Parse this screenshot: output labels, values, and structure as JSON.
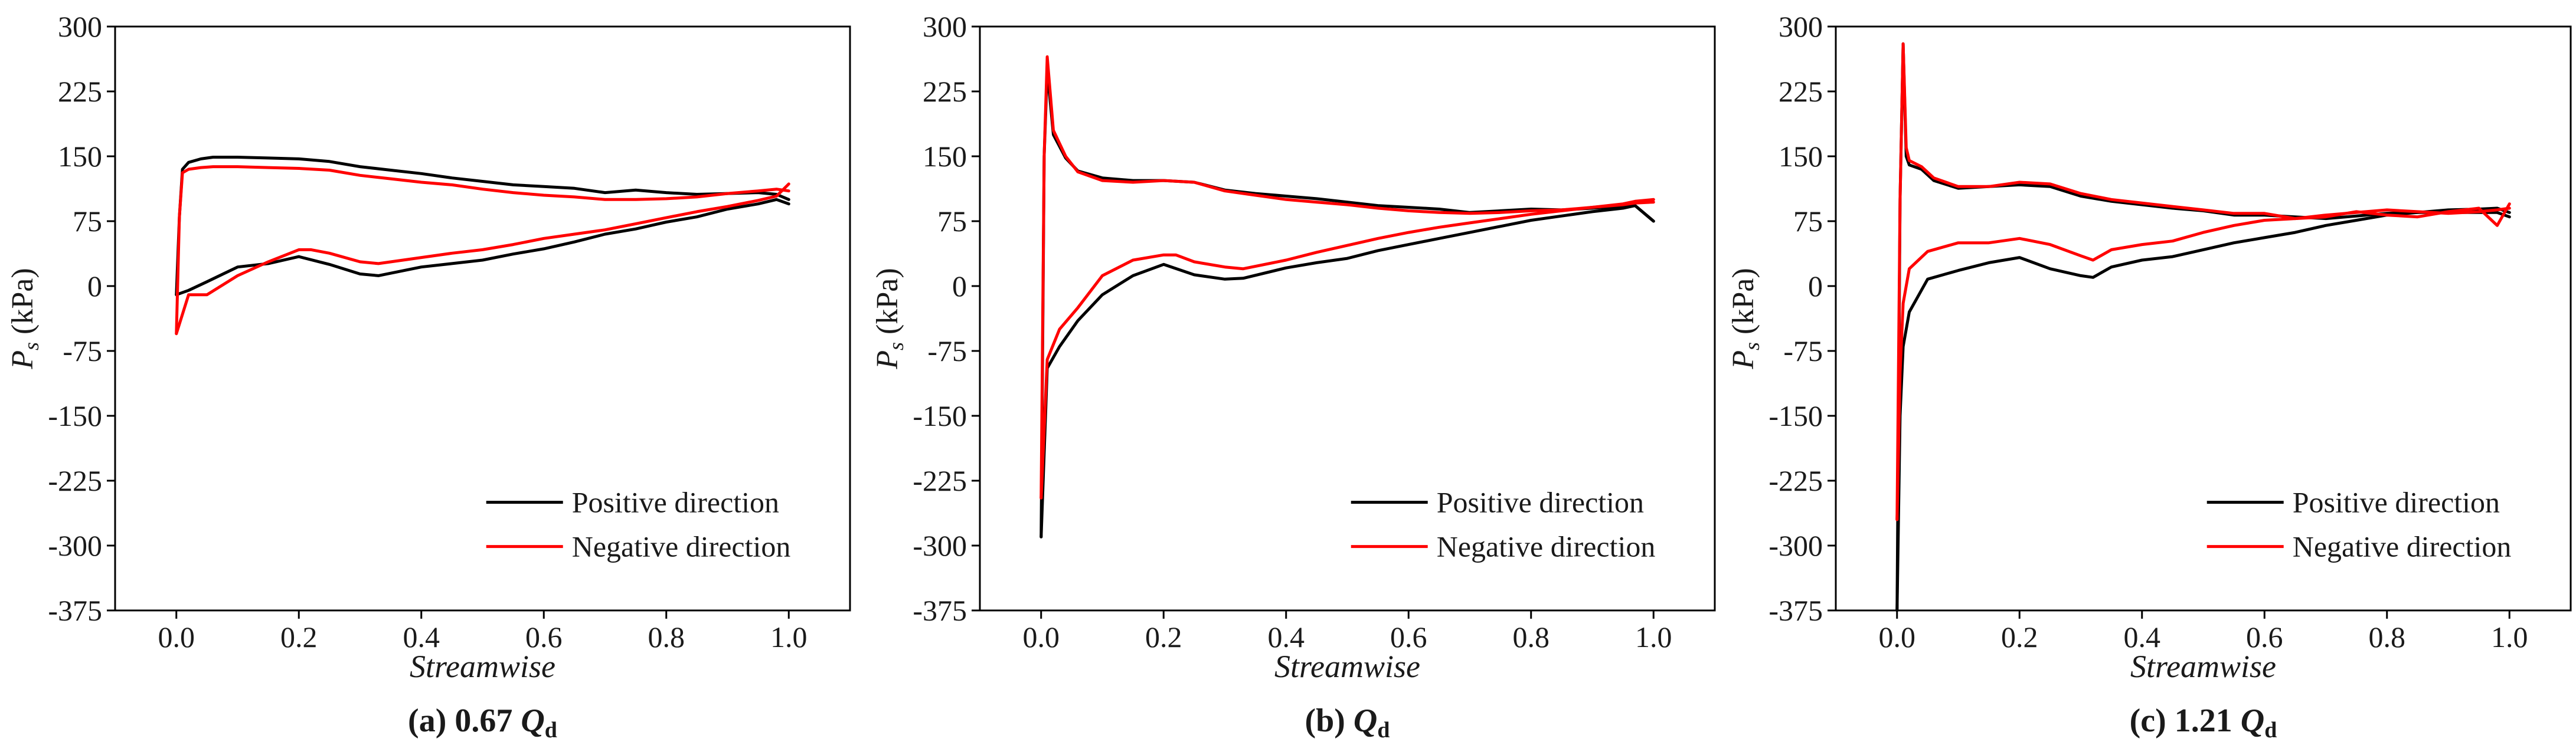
{
  "chart_data": [
    {
      "type": "line",
      "caption": "(a) 0.67 Qd",
      "caption_prefix": "(a) 0.67",
      "caption_q": "Q",
      "caption_sub": "d",
      "xlabel": "Streamwise",
      "ylabel_main": "P",
      "ylabel_sub": "s",
      "ylabel_unit": " (kPa)",
      "xlim": [
        -0.1,
        1.1
      ],
      "ylim": [
        -375,
        300
      ],
      "xticks": [
        "0.0",
        "0.2",
        "0.4",
        "0.6",
        "0.8",
        "1.0"
      ],
      "yticks": [
        "300",
        "225",
        "150",
        "75",
        "0",
        "-75",
        "-150",
        "-225",
        "-300",
        "-375"
      ],
      "legend": [
        "Positive direction",
        "Negative direction"
      ],
      "legend_position": "bottom-right",
      "series": [
        {
          "name": "Positive direction",
          "color": "#000000",
          "x": [
            0.0,
            0.005,
            0.01,
            0.02,
            0.04,
            0.06,
            0.1,
            0.15,
            0.2,
            0.25,
            0.3,
            0.35,
            0.4,
            0.45,
            0.5,
            0.55,
            0.6,
            0.65,
            0.7,
            0.75,
            0.8,
            0.85,
            0.9,
            0.95,
            0.98,
            1.0
          ],
          "y": [
            -10,
            80,
            135,
            143,
            147,
            149,
            149,
            148,
            147,
            144,
            138,
            134,
            130,
            125,
            121,
            117,
            115,
            113,
            108,
            111,
            108,
            106,
            107,
            108,
            106,
            100
          ],
          "x2": [
            0.0,
            0.02,
            0.05,
            0.1,
            0.15,
            0.2,
            0.25,
            0.3,
            0.33,
            0.4,
            0.45,
            0.5,
            0.55,
            0.6,
            0.65,
            0.7,
            0.75,
            0.8,
            0.85,
            0.9,
            0.95,
            0.98,
            1.0
          ],
          "y2": [
            -10,
            -5,
            5,
            22,
            26,
            34,
            25,
            14,
            12,
            22,
            26,
            30,
            37,
            43,
            51,
            60,
            66,
            74,
            80,
            89,
            95,
            100,
            95
          ]
        },
        {
          "name": "Negative direction",
          "color": "#ff0000",
          "x": [
            0.0,
            0.005,
            0.01,
            0.02,
            0.04,
            0.06,
            0.1,
            0.15,
            0.2,
            0.25,
            0.3,
            0.35,
            0.4,
            0.45,
            0.5,
            0.55,
            0.6,
            0.65,
            0.7,
            0.75,
            0.8,
            0.85,
            0.9,
            0.95,
            0.98,
            1.0
          ],
          "y": [
            -55,
            80,
            131,
            135,
            137,
            138,
            138,
            137,
            136,
            134,
            128,
            124,
            120,
            117,
            112,
            108,
            105,
            103,
            100,
            100,
            101,
            103,
            107,
            110,
            112,
            110
          ],
          "x2": [
            0.0,
            0.02,
            0.05,
            0.1,
            0.15,
            0.2,
            0.22,
            0.25,
            0.3,
            0.33,
            0.4,
            0.45,
            0.5,
            0.55,
            0.6,
            0.65,
            0.7,
            0.75,
            0.8,
            0.85,
            0.9,
            0.95,
            0.98,
            1.0
          ],
          "y2": [
            -55,
            -10,
            -10,
            12,
            28,
            42,
            42,
            38,
            28,
            26,
            33,
            38,
            42,
            48,
            55,
            60,
            65,
            72,
            79,
            86,
            92,
            99,
            104,
            118
          ]
        }
      ]
    },
    {
      "type": "line",
      "caption": "(b) Qd",
      "caption_prefix": "(b)",
      "caption_q": "Q",
      "caption_sub": "d",
      "xlabel": "Streamwise",
      "ylabel_main": "P",
      "ylabel_sub": "s",
      "ylabel_unit": " (kPa)",
      "xlim": [
        -0.1,
        1.1
      ],
      "ylim": [
        -375,
        300
      ],
      "xticks": [
        "0.0",
        "0.2",
        "0.4",
        "0.6",
        "0.8",
        "1.0"
      ],
      "yticks": [
        "300",
        "225",
        "150",
        "75",
        "0",
        "-75",
        "-150",
        "-225",
        "-300",
        "-375"
      ],
      "legend": [
        "Positive direction",
        "Negative direction"
      ],
      "legend_position": "bottom-right",
      "series": [
        {
          "name": "Positive direction",
          "color": "#000000",
          "x": [
            0.0,
            0.005,
            0.01,
            0.02,
            0.04,
            0.06,
            0.1,
            0.15,
            0.2,
            0.25,
            0.3,
            0.35,
            0.4,
            0.45,
            0.5,
            0.55,
            0.6,
            0.65,
            0.7,
            0.75,
            0.8,
            0.85,
            0.9,
            0.95,
            0.97,
            1.0
          ],
          "y": [
            -290,
            150,
            250,
            175,
            148,
            133,
            125,
            122,
            122,
            120,
            111,
            107,
            104,
            101,
            97,
            93,
            91,
            89,
            85,
            87,
            89,
            88,
            90,
            92,
            93,
            75
          ],
          "x2": [
            0.0,
            0.01,
            0.03,
            0.06,
            0.1,
            0.15,
            0.2,
            0.25,
            0.3,
            0.33,
            0.4,
            0.45,
            0.5,
            0.55,
            0.6,
            0.65,
            0.7,
            0.75,
            0.8,
            0.85,
            0.9,
            0.95,
            0.97,
            1.0
          ],
          "y2": [
            -290,
            -95,
            -70,
            -40,
            -10,
            12,
            25,
            13,
            8,
            9,
            21,
            27,
            32,
            41,
            48,
            55,
            62,
            69,
            76,
            81,
            86,
            90,
            93,
            75
          ]
        },
        {
          "name": "Negative direction",
          "color": "#ff0000",
          "x": [
            0.0,
            0.005,
            0.01,
            0.02,
            0.04,
            0.06,
            0.1,
            0.15,
            0.2,
            0.25,
            0.3,
            0.35,
            0.4,
            0.45,
            0.5,
            0.55,
            0.6,
            0.65,
            0.7,
            0.75,
            0.8,
            0.85,
            0.9,
            0.95,
            0.97,
            1.0
          ],
          "y": [
            -245,
            150,
            265,
            180,
            150,
            132,
            122,
            120,
            122,
            120,
            110,
            105,
            100,
            97,
            94,
            90,
            87,
            85,
            84,
            85,
            87,
            88,
            91,
            95,
            98,
            100
          ],
          "x2": [
            0.0,
            0.01,
            0.03,
            0.06,
            0.1,
            0.15,
            0.2,
            0.22,
            0.25,
            0.3,
            0.33,
            0.4,
            0.45,
            0.5,
            0.55,
            0.6,
            0.65,
            0.7,
            0.75,
            0.8,
            0.85,
            0.9,
            0.95,
            0.97,
            1.0
          ],
          "y2": [
            -245,
            -85,
            -50,
            -25,
            12,
            30,
            36,
            36,
            28,
            22,
            20,
            30,
            39,
            47,
            55,
            62,
            68,
            73,
            78,
            83,
            87,
            91,
            94,
            96,
            97
          ]
        }
      ]
    },
    {
      "type": "line",
      "caption": "(c) 1.21 Qd",
      "caption_prefix": "(c) 1.21",
      "caption_q": "Q",
      "caption_sub": "d",
      "xlabel": "Streamwise",
      "ylabel_main": "P",
      "ylabel_sub": "s",
      "ylabel_unit": " (kPa)",
      "xlim": [
        -0.1,
        1.1
      ],
      "ylim": [
        -375,
        300
      ],
      "xticks": [
        "0.0",
        "0.2",
        "0.4",
        "0.6",
        "0.8",
        "1.0"
      ],
      "yticks": [
        "300",
        "225",
        "150",
        "75",
        "0",
        "-75",
        "-150",
        "-225",
        "-300",
        "-375"
      ],
      "legend": [
        "Positive direction",
        "Negative direction"
      ],
      "legend_position": "bottom-right",
      "series": [
        {
          "name": "Positive direction",
          "color": "#000000",
          "x": [
            0.0,
            0.005,
            0.01,
            0.015,
            0.02,
            0.04,
            0.06,
            0.1,
            0.15,
            0.2,
            0.25,
            0.3,
            0.35,
            0.4,
            0.45,
            0.5,
            0.55,
            0.6,
            0.65,
            0.7,
            0.75,
            0.8,
            0.85,
            0.9,
            0.95,
            0.98,
            1.0
          ],
          "y": [
            -375,
            100,
            280,
            150,
            140,
            135,
            122,
            113,
            115,
            117,
            115,
            104,
            98,
            94,
            90,
            87,
            82,
            82,
            80,
            78,
            81,
            84,
            85,
            85,
            85,
            85,
            80
          ],
          "x2": [
            0.0,
            0.005,
            0.01,
            0.02,
            0.05,
            0.1,
            0.15,
            0.2,
            0.25,
            0.3,
            0.32,
            0.35,
            0.4,
            0.45,
            0.5,
            0.55,
            0.6,
            0.65,
            0.7,
            0.75,
            0.8,
            0.85,
            0.9,
            0.95,
            0.98,
            1.0
          ],
          "y2": [
            -375,
            -150,
            -70,
            -30,
            8,
            18,
            27,
            33,
            20,
            12,
            10,
            22,
            30,
            34,
            42,
            50,
            56,
            62,
            70,
            76,
            82,
            85,
            88,
            89,
            90,
            85
          ]
        },
        {
          "name": "Negative direction",
          "color": "#ff0000",
          "x": [
            0.0,
            0.005,
            0.01,
            0.015,
            0.02,
            0.04,
            0.06,
            0.1,
            0.15,
            0.2,
            0.25,
            0.3,
            0.35,
            0.4,
            0.45,
            0.5,
            0.55,
            0.6,
            0.65,
            0.7,
            0.75,
            0.8,
            0.85,
            0.9,
            0.95,
            0.98,
            1.0
          ],
          "y": [
            -270,
            100,
            280,
            160,
            145,
            138,
            125,
            115,
            115,
            120,
            118,
            107,
            100,
            96,
            92,
            88,
            84,
            84,
            78,
            80,
            86,
            82,
            80,
            86,
            90,
            70,
            95
          ],
          "x2": [
            0.0,
            0.005,
            0.01,
            0.02,
            0.05,
            0.1,
            0.15,
            0.2,
            0.25,
            0.3,
            0.32,
            0.35,
            0.4,
            0.45,
            0.5,
            0.55,
            0.6,
            0.65,
            0.7,
            0.75,
            0.8,
            0.85,
            0.9,
            0.95,
            0.98,
            1.0
          ],
          "y2": [
            -270,
            -100,
            -20,
            20,
            40,
            50,
            50,
            55,
            48,
            35,
            30,
            42,
            48,
            52,
            62,
            70,
            76,
            78,
            82,
            85,
            88,
            86,
            84,
            86,
            88,
            90
          ]
        }
      ]
    }
  ]
}
